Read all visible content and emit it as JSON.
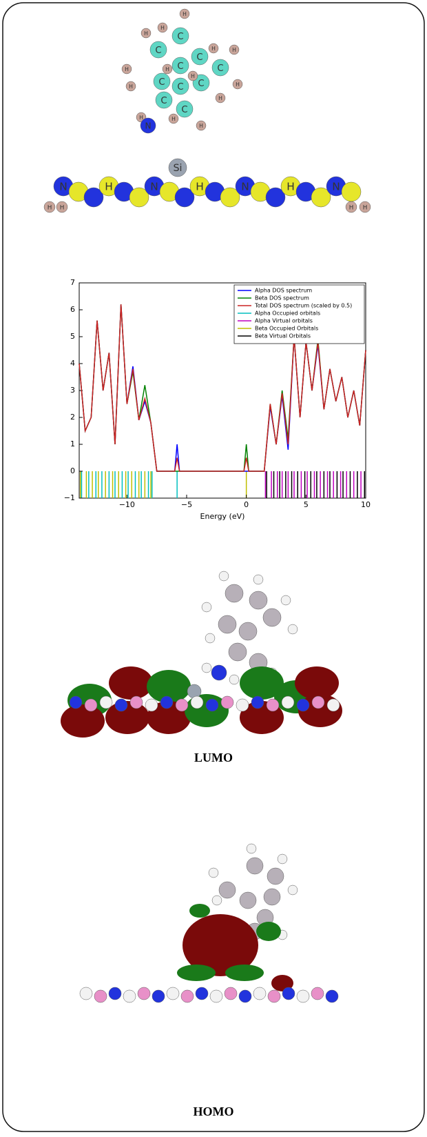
{
  "chart_data": {
    "type": "line",
    "xlabel": "Energy (eV)",
    "xlim": [
      -14,
      10
    ],
    "ylim": [
      -1,
      7
    ],
    "xticks": [
      {
        "value": -10,
        "label": "−10"
      },
      {
        "value": -5,
        "label": "−5"
      },
      0,
      5,
      10
    ],
    "yticks": [
      {
        "value": -1,
        "label": "−1"
      },
      0,
      1,
      2,
      3,
      4,
      5,
      6,
      7
    ],
    "legend": "upper right",
    "x": [
      -14,
      -13.5,
      -13,
      -12.5,
      -12,
      -11.5,
      -11,
      -10.5,
      -10,
      -9.5,
      -9,
      -8.5,
      -8,
      -7.5,
      -6,
      -5.8,
      -5.6,
      -0.2,
      0,
      0.2,
      1.5,
      2,
      2.5,
      3,
      3.5,
      4,
      4.5,
      5,
      5.5,
      6,
      6.5,
      7,
      7.5,
      8,
      8.5,
      9,
      9.5,
      10
    ],
    "series": [
      {
        "name": "Alpha DOS spectrum",
        "color": "#0000ff",
        "values": [
          4.0,
          1.5,
          2.0,
          5.6,
          3.0,
          4.4,
          1.0,
          6.2,
          2.5,
          3.9,
          1.9,
          2.6,
          1.8,
          0,
          0,
          1.0,
          0,
          0,
          0,
          0,
          0,
          2.4,
          1.0,
          2.8,
          0.8,
          5.0,
          2.0,
          4.8,
          3.0,
          4.7,
          2.3,
          3.8,
          2.6,
          3.5,
          2.0,
          3.0,
          1.7,
          4.5
        ]
      },
      {
        "name": "Beta DOS spectrum",
        "color": "#008000",
        "values": [
          4.0,
          1.5,
          2.0,
          5.6,
          3.0,
          4.4,
          1.0,
          6.2,
          2.5,
          3.7,
          1.9,
          3.2,
          1.8,
          0,
          0,
          0,
          0,
          0,
          1.0,
          0,
          0,
          2.5,
          1.0,
          3.0,
          1.2,
          5.0,
          2.0,
          4.8,
          3.0,
          4.9,
          2.3,
          3.8,
          2.6,
          3.5,
          2.0,
          3.0,
          1.7,
          4.5
        ]
      },
      {
        "name": "Total DOS spectrum (scaled by 0.5)",
        "color": "#cc2222",
        "values": [
          4.0,
          1.5,
          2.0,
          5.6,
          3.0,
          4.4,
          1.0,
          6.2,
          2.5,
          3.8,
          1.9,
          2.7,
          1.8,
          0,
          0,
          0.5,
          0,
          0,
          0.5,
          0,
          0,
          2.5,
          1.0,
          2.9,
          1.0,
          5.0,
          2.0,
          4.8,
          3.0,
          4.8,
          2.3,
          3.8,
          2.6,
          3.5,
          2.0,
          3.0,
          1.7,
          4.5
        ]
      },
      {
        "name": "Alpha Occupied orbitals",
        "color": "#00bfbf",
        "energies": [
          -13.8,
          -13.2,
          -12.6,
          -12.1,
          -11.5,
          -11.0,
          -10.4,
          -9.9,
          -9.3,
          -8.8,
          -8.2,
          -7.9,
          -5.8
        ]
      },
      {
        "name": "Alpha Virtual orbitals",
        "color": "#bf00bf",
        "energies": [
          1.6,
          2.1,
          2.6,
          3.0,
          3.5,
          4.0,
          4.6,
          5.1,
          5.7,
          6.2,
          6.8,
          7.3,
          7.9,
          8.4,
          9.0,
          9.6
        ]
      },
      {
        "name": "Beta Occupied Orbitals",
        "color": "#bfbf00",
        "energies": [
          -13.9,
          -13.4,
          -12.9,
          -12.4,
          -11.8,
          -11.2,
          -10.7,
          -10.1,
          -9.6,
          -9.0,
          -8.5,
          -8.0,
          0
        ]
      },
      {
        "name": "Beta Virtual Orbitals",
        "color": "#000000",
        "energies": [
          1.7,
          2.3,
          2.8,
          3.3,
          3.8,
          4.3,
          4.9,
          5.4,
          5.9,
          6.5,
          7.0,
          7.6,
          8.1,
          8.7,
          9.3,
          9.9
        ]
      }
    ]
  },
  "atom_symbols": {
    "carbon": "C",
    "hydrogen": "H",
    "nitrogen": "N",
    "silicon": "Si"
  },
  "captions": {
    "lumo": "LUMO",
    "homo": "HOMO"
  }
}
